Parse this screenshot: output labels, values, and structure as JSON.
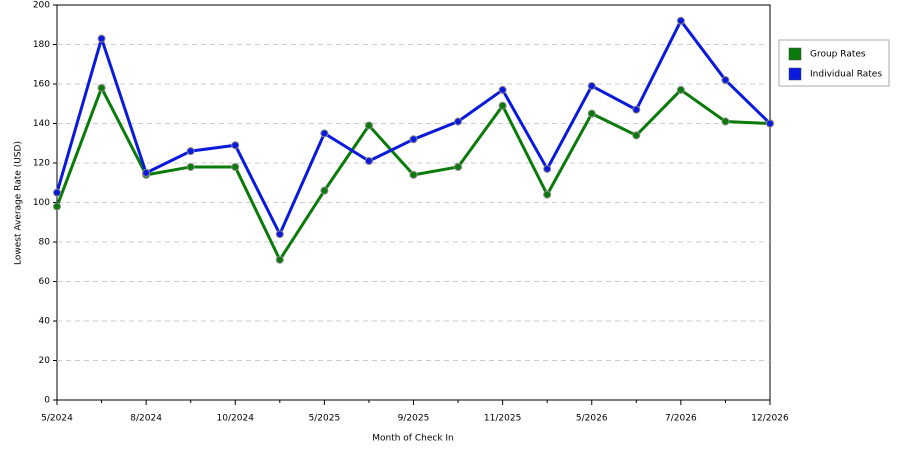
{
  "chart_data": {
    "type": "line",
    "x_label": "Month of Check In",
    "y_label": "Lowest Average Rate (USD)",
    "categories": [
      "5/2024",
      null,
      "8/2024",
      null,
      "10/2024",
      null,
      "5/2025",
      null,
      "9/2025",
      null,
      "11/2025",
      null,
      "5/2026",
      null,
      "7/2026",
      null,
      "12/2026"
    ],
    "series": [
      {
        "name": "Group Rates",
        "color": "#0a7a0a",
        "values": [
          98,
          158,
          114,
          118,
          118,
          71,
          106,
          139,
          114,
          118,
          149,
          104,
          145,
          134,
          157,
          141,
          140
        ]
      },
      {
        "name": "Individual Rates",
        "color": "#0a1adc",
        "values": [
          105,
          183,
          115,
          126,
          129,
          84,
          135,
          121,
          132,
          141,
          157,
          117,
          159,
          147,
          192,
          162,
          140
        ]
      }
    ],
    "ylim": [
      0,
      200
    ],
    "yticks": [
      0,
      20,
      40,
      60,
      80,
      100,
      120,
      140,
      160,
      180,
      200
    ],
    "grid": true,
    "legend": "right"
  }
}
